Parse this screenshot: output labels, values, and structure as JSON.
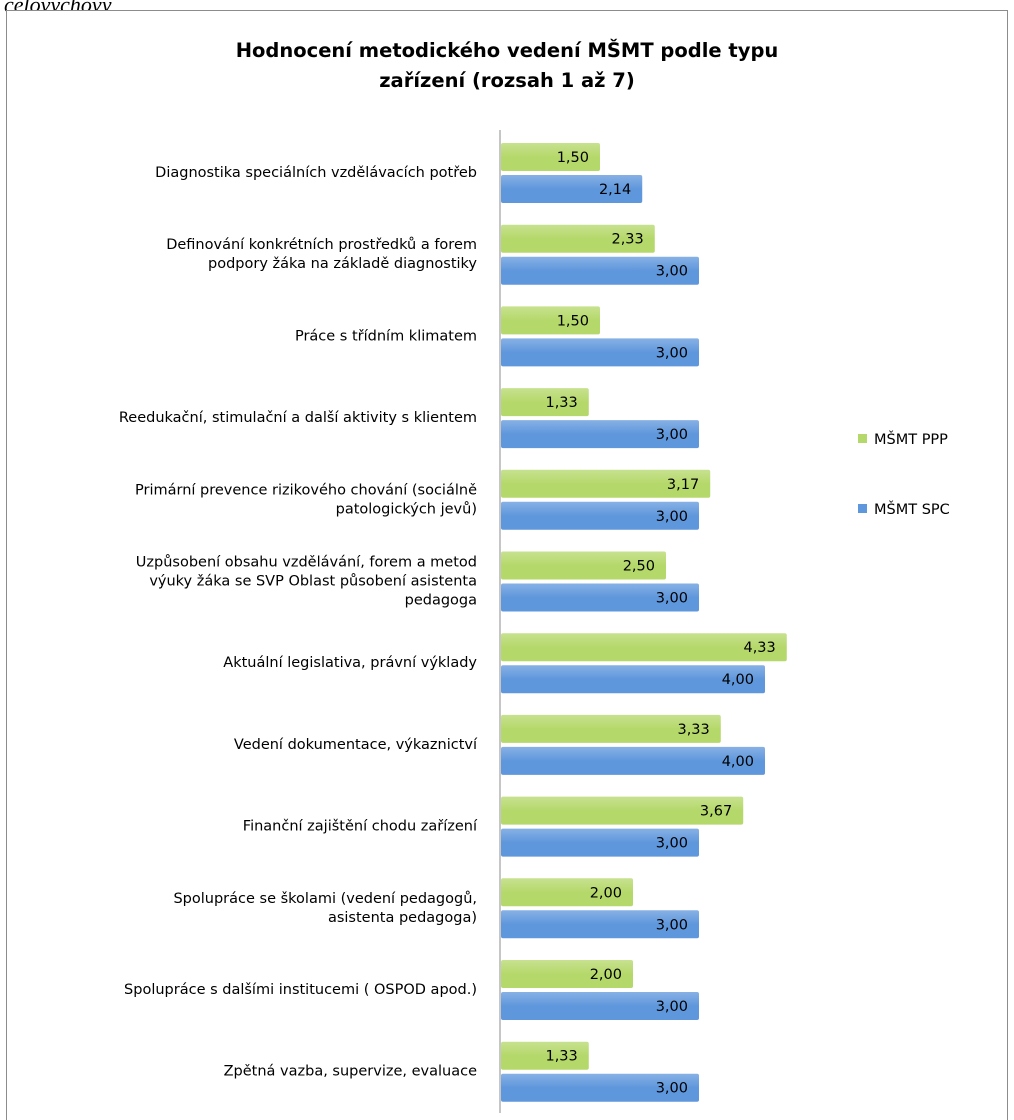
{
  "top_fragment": "celovýchový",
  "colors": {
    "ppp": "#b5d86a",
    "spc": "#5f97dc",
    "axis": "#8c8c8c"
  },
  "chart_data": {
    "type": "bar",
    "orientation": "horizontal",
    "title": [
      "Hodnocení metodického vedení MŠMT podle typu",
      "zařízení (rozsah 1 až 7)"
    ],
    "legend_position": "right",
    "grid": false,
    "xlim": [
      0,
      7
    ],
    "categories": [
      [
        "Diagnostika speciálních vzdělávacích potřeb"
      ],
      [
        "Definování konkrétních prostředků a forem",
        "podpory žáka na základě diagnostiky"
      ],
      [
        "Práce s třídním klimatem"
      ],
      [
        "Reedukační, stimulační a další aktivity s klientem"
      ],
      [
        "Primární prevence rizikového chování (sociálně",
        "patologických jevů)"
      ],
      [
        "Uzpůsobení obsahu vzdělávání, forem a metod",
        "výuky žáka se SVP Oblast působení asistenta",
        "pedagoga"
      ],
      [
        "Aktuální legislativa, právní výklady"
      ],
      [
        "Vedení dokumentace, výkaznictví"
      ],
      [
        "Finanční zajištění chodu zařízení"
      ],
      [
        "Spolupráce se školami (vedení pedagogů,",
        "asistenta pedagoga)"
      ],
      [
        "Spolupráce s dalšími institucemi ( OSPOD apod.)"
      ],
      [
        "Zpětná vazba, supervize, evaluace"
      ]
    ],
    "series": [
      {
        "name": "MŠMT PPP",
        "values": [
          1.5,
          2.33,
          1.5,
          1.33,
          3.17,
          2.5,
          4.33,
          3.33,
          3.67,
          2.0,
          2.0,
          1.33
        ],
        "labels": [
          "1,50",
          "2,33",
          "1,50",
          "1,33",
          "3,17",
          "2,50",
          "4,33",
          "3,33",
          "3,67",
          "2,00",
          "2,00",
          "1,33"
        ]
      },
      {
        "name": "MŠMT SPC",
        "values": [
          2.14,
          3.0,
          3.0,
          3.0,
          3.0,
          3.0,
          4.0,
          4.0,
          3.0,
          3.0,
          3.0,
          3.0
        ],
        "labels": [
          "2,14",
          "3,00",
          "3,00",
          "3,00",
          "3,00",
          "3,00",
          "4,00",
          "4,00",
          "3,00",
          "3,00",
          "3,00",
          "3,00"
        ]
      }
    ]
  }
}
